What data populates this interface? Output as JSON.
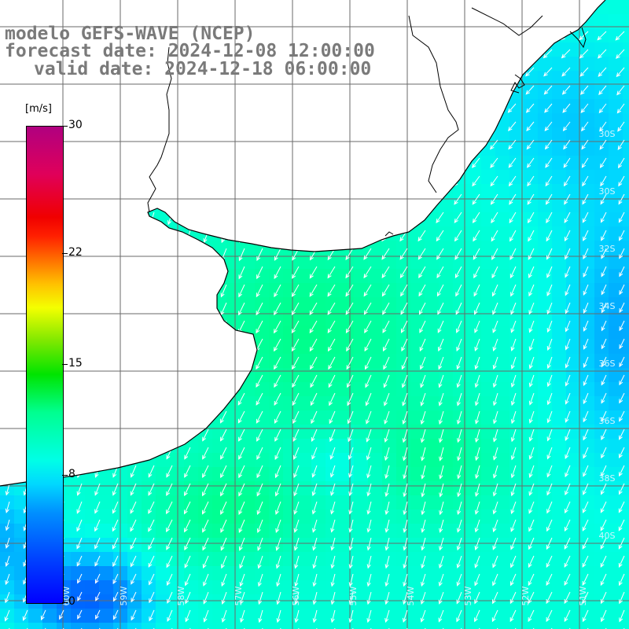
{
  "title": {
    "model": "modelo GEFS-WAVE (NCEP)",
    "forecast": "forecast date: 2024-12-08 12:00:00",
    "valid": "valid date: 2024-12-18 06:00:00"
  },
  "colorbar": {
    "unit": "[m/s]",
    "ticks": [
      {
        "value": 30,
        "label": "30"
      },
      {
        "value": 22,
        "label": "22"
      },
      {
        "value": 15,
        "label": "15"
      },
      {
        "value": 8,
        "label": "8"
      },
      {
        "value": 0,
        "label": "0"
      }
    ],
    "min": 0,
    "max": 30
  },
  "graticule_labels": {
    "latitudes": [
      "30S",
      "32S",
      "34S",
      "36S",
      "38S",
      "40S"
    ],
    "longitudes": [
      "60W",
      "59W",
      "58W",
      "57W",
      "56W",
      "55W",
      "54W",
      "53W",
      "52W",
      "51W",
      "50W"
    ]
  },
  "wind_field": {
    "units": "m/s",
    "predominant_direction": "from north-northeast",
    "speed_range": [
      4,
      14
    ]
  },
  "colors": {
    "land": "#ffffff",
    "coast": "#000000",
    "grid": "#6a6a6a",
    "arrows": "#ffffff",
    "title_text": "#7a7a7a"
  }
}
